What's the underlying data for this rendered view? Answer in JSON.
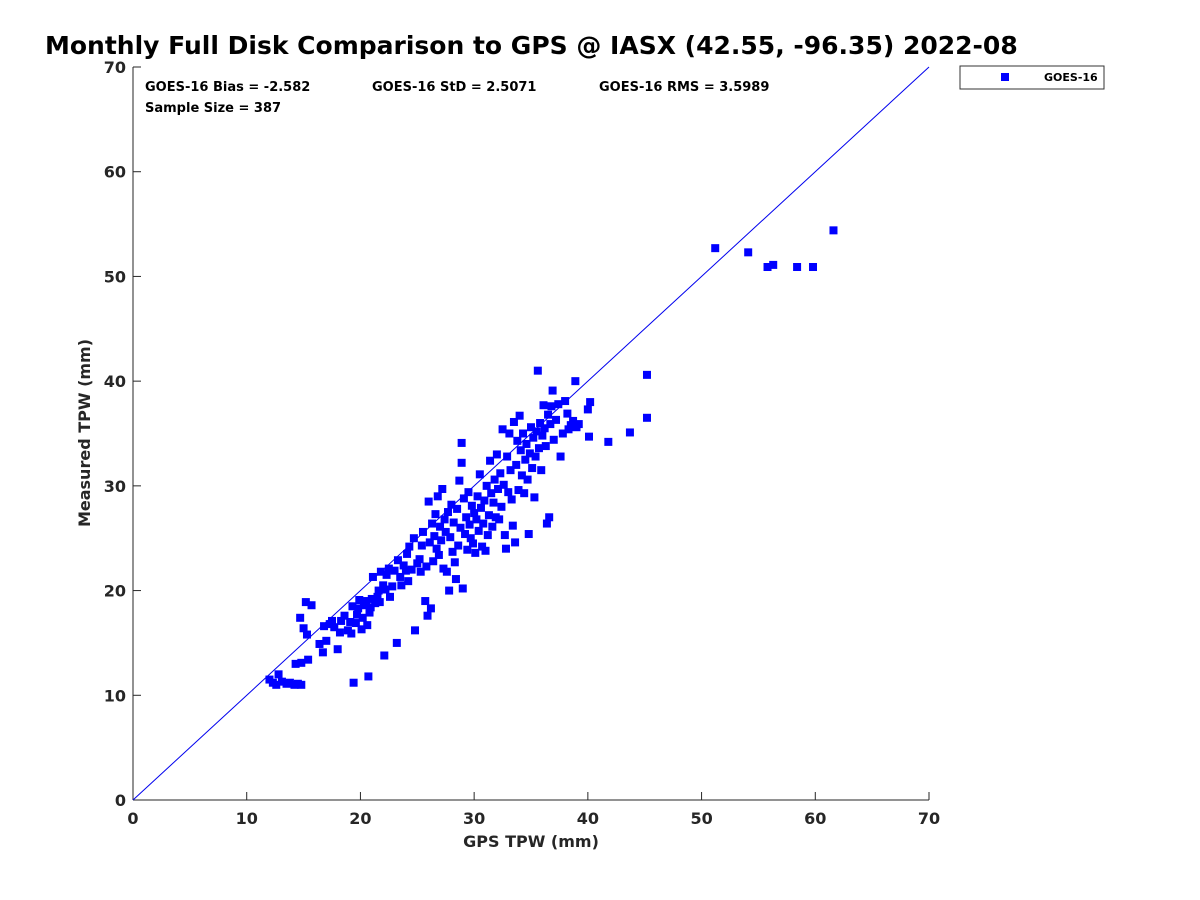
{
  "chart_data": {
    "type": "scatter",
    "title": "Monthly Full Disk Comparison to GPS @ IASX (42.55, -96.35) 2022-08",
    "xlabel": "GPS TPW (mm)",
    "ylabel": "Measured TPW (mm)",
    "xlim": [
      0,
      70
    ],
    "ylim": [
      0,
      70
    ],
    "xticks": [
      0,
      10,
      20,
      30,
      40,
      50,
      60,
      70
    ],
    "yticks": [
      0,
      10,
      20,
      30,
      40,
      50,
      60,
      70
    ],
    "grid": false,
    "legend_position": "top-right, outside plot",
    "reference_line": {
      "x": [
        0,
        70
      ],
      "y": [
        0,
        70
      ],
      "color": "#0000ee"
    },
    "stats": {
      "bias": "GOES-16 Bias = -2.582",
      "std": "GOES-16 StD = 2.5071",
      "rms": "GOES-16 RMS = 3.5989",
      "sample_size": "Sample Size = 387"
    },
    "series": [
      {
        "name": "GOES-16",
        "color": "#0000ff",
        "marker": "square",
        "points": [
          [
            12.0,
            11.5
          ],
          [
            12.3,
            11.2
          ],
          [
            12.6,
            11.0
          ],
          [
            12.8,
            12.0
          ],
          [
            13.1,
            11.3
          ],
          [
            13.5,
            11.1
          ],
          [
            13.8,
            11.2
          ],
          [
            14.2,
            11.0
          ],
          [
            14.5,
            11.1
          ],
          [
            14.8,
            11.0
          ],
          [
            14.3,
            13.0
          ],
          [
            14.8,
            13.1
          ],
          [
            15.4,
            13.4
          ],
          [
            14.7,
            17.4
          ],
          [
            15.0,
            16.4
          ],
          [
            15.3,
            15.8
          ],
          [
            15.2,
            18.9
          ],
          [
            15.7,
            18.6
          ],
          [
            16.4,
            14.9
          ],
          [
            16.7,
            14.1
          ],
          [
            16.8,
            16.6
          ],
          [
            17.0,
            15.2
          ],
          [
            17.3,
            16.8
          ],
          [
            17.5,
            17.1
          ],
          [
            17.7,
            16.5
          ],
          [
            18.0,
            14.4
          ],
          [
            18.2,
            16.0
          ],
          [
            18.3,
            17.1
          ],
          [
            18.6,
            17.6
          ],
          [
            18.9,
            16.2
          ],
          [
            19.1,
            17.0
          ],
          [
            19.2,
            15.9
          ],
          [
            19.3,
            18.5
          ],
          [
            19.4,
            11.2
          ],
          [
            19.6,
            16.9
          ],
          [
            19.7,
            17.7
          ],
          [
            19.8,
            18.3
          ],
          [
            19.9,
            19.1
          ],
          [
            20.1,
            16.3
          ],
          [
            20.2,
            17.4
          ],
          [
            20.3,
            18.6
          ],
          [
            20.5,
            19.0
          ],
          [
            20.6,
            16.7
          ],
          [
            20.7,
            11.8
          ],
          [
            20.8,
            17.9
          ],
          [
            20.9,
            18.4
          ],
          [
            21.0,
            19.2
          ],
          [
            21.1,
            21.3
          ],
          [
            21.3,
            18.8
          ],
          [
            21.5,
            19.4
          ],
          [
            21.6,
            20.0
          ],
          [
            21.7,
            18.9
          ],
          [
            21.8,
            21.8
          ],
          [
            22.0,
            20.5
          ],
          [
            22.1,
            13.8
          ],
          [
            22.2,
            20.1
          ],
          [
            22.3,
            21.5
          ],
          [
            22.5,
            22.1
          ],
          [
            22.6,
            19.4
          ],
          [
            22.8,
            20.4
          ],
          [
            23.0,
            21.9
          ],
          [
            23.2,
            15.0
          ],
          [
            23.3,
            22.9
          ],
          [
            23.5,
            21.3
          ],
          [
            23.6,
            20.5
          ],
          [
            23.8,
            22.4
          ],
          [
            24.0,
            21.9
          ],
          [
            24.1,
            23.5
          ],
          [
            24.2,
            20.9
          ],
          [
            24.3,
            24.2
          ],
          [
            24.5,
            22.0
          ],
          [
            24.7,
            25.0
          ],
          [
            24.8,
            16.2
          ],
          [
            25.0,
            22.6
          ],
          [
            25.2,
            23.0
          ],
          [
            25.3,
            21.8
          ],
          [
            25.4,
            24.3
          ],
          [
            25.5,
            25.6
          ],
          [
            25.7,
            19.0
          ],
          [
            25.8,
            22.3
          ],
          [
            25.9,
            17.6
          ],
          [
            26.0,
            28.5
          ],
          [
            26.1,
            24.6
          ],
          [
            26.2,
            18.3
          ],
          [
            26.3,
            26.4
          ],
          [
            26.4,
            22.8
          ],
          [
            26.5,
            25.2
          ],
          [
            26.6,
            27.3
          ],
          [
            26.7,
            24.0
          ],
          [
            26.8,
            29.0
          ],
          [
            26.9,
            23.4
          ],
          [
            27.0,
            26.1
          ],
          [
            27.1,
            24.8
          ],
          [
            27.2,
            29.7
          ],
          [
            27.3,
            22.1
          ],
          [
            27.4,
            26.8
          ],
          [
            27.5,
            25.6
          ],
          [
            27.6,
            21.8
          ],
          [
            27.7,
            27.5
          ],
          [
            27.8,
            20.0
          ],
          [
            27.9,
            25.1
          ],
          [
            28.0,
            28.2
          ],
          [
            28.1,
            23.7
          ],
          [
            28.2,
            26.5
          ],
          [
            28.3,
            22.7
          ],
          [
            28.4,
            21.1
          ],
          [
            28.5,
            27.8
          ],
          [
            28.6,
            24.3
          ],
          [
            28.7,
            30.5
          ],
          [
            28.8,
            26.0
          ],
          [
            28.9,
            34.1
          ],
          [
            28.9,
            32.2
          ],
          [
            29.0,
            20.2
          ],
          [
            29.1,
            28.8
          ],
          [
            29.2,
            25.4
          ],
          [
            29.3,
            27.0
          ],
          [
            29.4,
            23.9
          ],
          [
            29.5,
            29.4
          ],
          [
            29.6,
            26.3
          ],
          [
            29.7,
            25.0
          ],
          [
            29.8,
            28.1
          ],
          [
            29.9,
            24.5
          ],
          [
            30.0,
            27.4
          ],
          [
            30.1,
            23.6
          ],
          [
            30.2,
            26.8
          ],
          [
            30.3,
            29.0
          ],
          [
            30.4,
            25.7
          ],
          [
            30.5,
            31.1
          ],
          [
            30.6,
            27.9
          ],
          [
            30.7,
            24.2
          ],
          [
            30.8,
            26.4
          ],
          [
            30.9,
            28.6
          ],
          [
            31.0,
            23.8
          ],
          [
            31.1,
            30.0
          ],
          [
            31.2,
            25.3
          ],
          [
            31.3,
            27.2
          ],
          [
            31.4,
            32.4
          ],
          [
            31.5,
            29.3
          ],
          [
            31.6,
            26.1
          ],
          [
            31.7,
            28.4
          ],
          [
            31.8,
            30.6
          ],
          [
            31.9,
            27.0
          ],
          [
            32.0,
            33.0
          ],
          [
            32.1,
            29.7
          ],
          [
            32.2,
            26.8
          ],
          [
            32.3,
            31.2
          ],
          [
            32.4,
            28.0
          ],
          [
            32.5,
            35.4
          ],
          [
            32.6,
            30.1
          ],
          [
            32.7,
            25.3
          ],
          [
            32.8,
            24.0
          ],
          [
            32.9,
            32.8
          ],
          [
            33.0,
            29.4
          ],
          [
            33.1,
            35.0
          ],
          [
            33.2,
            31.5
          ],
          [
            33.3,
            28.7
          ],
          [
            33.4,
            26.2
          ],
          [
            33.5,
            36.1
          ],
          [
            33.6,
            24.6
          ],
          [
            33.7,
            32.0
          ],
          [
            33.8,
            34.3
          ],
          [
            33.9,
            29.6
          ],
          [
            34.0,
            36.7
          ],
          [
            34.1,
            33.4
          ],
          [
            34.2,
            31.0
          ],
          [
            34.3,
            35.0
          ],
          [
            34.4,
            29.3
          ],
          [
            34.5,
            32.5
          ],
          [
            34.6,
            34.0
          ],
          [
            34.7,
            30.6
          ],
          [
            34.8,
            25.4
          ],
          [
            34.9,
            33.1
          ],
          [
            35.0,
            35.6
          ],
          [
            35.1,
            31.7
          ],
          [
            35.2,
            34.6
          ],
          [
            35.3,
            28.9
          ],
          [
            35.4,
            32.8
          ],
          [
            35.5,
            35.2
          ],
          [
            35.6,
            41.0
          ],
          [
            35.7,
            33.6
          ],
          [
            35.8,
            36.0
          ],
          [
            35.9,
            31.5
          ],
          [
            36.0,
            34.8
          ],
          [
            36.1,
            37.7
          ],
          [
            36.2,
            35.5
          ],
          [
            36.3,
            33.8
          ],
          [
            36.4,
            26.4
          ],
          [
            36.5,
            36.8
          ],
          [
            36.6,
            27.0
          ],
          [
            36.7,
            35.9
          ],
          [
            36.8,
            37.6
          ],
          [
            36.9,
            39.1
          ],
          [
            37.0,
            34.4
          ],
          [
            37.2,
            36.3
          ],
          [
            37.4,
            37.8
          ],
          [
            37.6,
            32.8
          ],
          [
            37.8,
            35.0
          ],
          [
            38.0,
            38.1
          ],
          [
            38.2,
            36.9
          ],
          [
            38.3,
            35.4
          ],
          [
            38.5,
            35.8
          ],
          [
            38.7,
            36.2
          ],
          [
            38.9,
            40.0
          ],
          [
            39.0,
            35.6
          ],
          [
            39.2,
            35.9
          ],
          [
            40.0,
            37.3
          ],
          [
            40.1,
            34.7
          ],
          [
            40.2,
            38.0
          ],
          [
            41.8,
            34.2
          ],
          [
            43.7,
            35.1
          ],
          [
            45.2,
            36.5
          ],
          [
            45.2,
            40.6
          ],
          [
            51.2,
            52.7
          ],
          [
            54.1,
            52.3
          ],
          [
            55.8,
            50.9
          ],
          [
            56.3,
            51.1
          ],
          [
            58.4,
            50.9
          ],
          [
            59.8,
            50.9
          ],
          [
            61.6,
            54.4
          ]
        ]
      }
    ]
  }
}
